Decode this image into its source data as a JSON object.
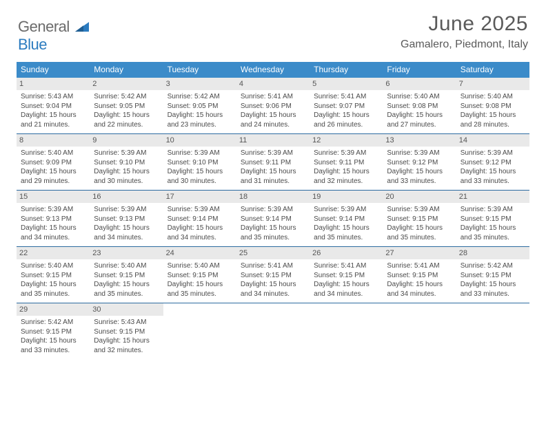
{
  "brand": {
    "part1": "General",
    "part2": "Blue"
  },
  "title": "June 2025",
  "location": "Gamalero, Piedmont, Italy",
  "colors": {
    "header_bg": "#3b8bc9",
    "week_border": "#2b6aa0",
    "daynum_bg": "#e9e9e9",
    "logo_gray": "#6b6b6b",
    "logo_blue": "#2b7bbf"
  },
  "day_names": [
    "Sunday",
    "Monday",
    "Tuesday",
    "Wednesday",
    "Thursday",
    "Friday",
    "Saturday"
  ],
  "weeks": [
    [
      {
        "n": "1",
        "sr": "5:43 AM",
        "ss": "9:04 PM",
        "dl": "15 hours and 21 minutes."
      },
      {
        "n": "2",
        "sr": "5:42 AM",
        "ss": "9:05 PM",
        "dl": "15 hours and 22 minutes."
      },
      {
        "n": "3",
        "sr": "5:42 AM",
        "ss": "9:05 PM",
        "dl": "15 hours and 23 minutes."
      },
      {
        "n": "4",
        "sr": "5:41 AM",
        "ss": "9:06 PM",
        "dl": "15 hours and 24 minutes."
      },
      {
        "n": "5",
        "sr": "5:41 AM",
        "ss": "9:07 PM",
        "dl": "15 hours and 26 minutes."
      },
      {
        "n": "6",
        "sr": "5:40 AM",
        "ss": "9:08 PM",
        "dl": "15 hours and 27 minutes."
      },
      {
        "n": "7",
        "sr": "5:40 AM",
        "ss": "9:08 PM",
        "dl": "15 hours and 28 minutes."
      }
    ],
    [
      {
        "n": "8",
        "sr": "5:40 AM",
        "ss": "9:09 PM",
        "dl": "15 hours and 29 minutes."
      },
      {
        "n": "9",
        "sr": "5:39 AM",
        "ss": "9:10 PM",
        "dl": "15 hours and 30 minutes."
      },
      {
        "n": "10",
        "sr": "5:39 AM",
        "ss": "9:10 PM",
        "dl": "15 hours and 30 minutes."
      },
      {
        "n": "11",
        "sr": "5:39 AM",
        "ss": "9:11 PM",
        "dl": "15 hours and 31 minutes."
      },
      {
        "n": "12",
        "sr": "5:39 AM",
        "ss": "9:11 PM",
        "dl": "15 hours and 32 minutes."
      },
      {
        "n": "13",
        "sr": "5:39 AM",
        "ss": "9:12 PM",
        "dl": "15 hours and 33 minutes."
      },
      {
        "n": "14",
        "sr": "5:39 AM",
        "ss": "9:12 PM",
        "dl": "15 hours and 33 minutes."
      }
    ],
    [
      {
        "n": "15",
        "sr": "5:39 AM",
        "ss": "9:13 PM",
        "dl": "15 hours and 34 minutes."
      },
      {
        "n": "16",
        "sr": "5:39 AM",
        "ss": "9:13 PM",
        "dl": "15 hours and 34 minutes."
      },
      {
        "n": "17",
        "sr": "5:39 AM",
        "ss": "9:14 PM",
        "dl": "15 hours and 34 minutes."
      },
      {
        "n": "18",
        "sr": "5:39 AM",
        "ss": "9:14 PM",
        "dl": "15 hours and 35 minutes."
      },
      {
        "n": "19",
        "sr": "5:39 AM",
        "ss": "9:14 PM",
        "dl": "15 hours and 35 minutes."
      },
      {
        "n": "20",
        "sr": "5:39 AM",
        "ss": "9:15 PM",
        "dl": "15 hours and 35 minutes."
      },
      {
        "n": "21",
        "sr": "5:39 AM",
        "ss": "9:15 PM",
        "dl": "15 hours and 35 minutes."
      }
    ],
    [
      {
        "n": "22",
        "sr": "5:40 AM",
        "ss": "9:15 PM",
        "dl": "15 hours and 35 minutes."
      },
      {
        "n": "23",
        "sr": "5:40 AM",
        "ss": "9:15 PM",
        "dl": "15 hours and 35 minutes."
      },
      {
        "n": "24",
        "sr": "5:40 AM",
        "ss": "9:15 PM",
        "dl": "15 hours and 35 minutes."
      },
      {
        "n": "25",
        "sr": "5:41 AM",
        "ss": "9:15 PM",
        "dl": "15 hours and 34 minutes."
      },
      {
        "n": "26",
        "sr": "5:41 AM",
        "ss": "9:15 PM",
        "dl": "15 hours and 34 minutes."
      },
      {
        "n": "27",
        "sr": "5:41 AM",
        "ss": "9:15 PM",
        "dl": "15 hours and 34 minutes."
      },
      {
        "n": "28",
        "sr": "5:42 AM",
        "ss": "9:15 PM",
        "dl": "15 hours and 33 minutes."
      }
    ],
    [
      {
        "n": "29",
        "sr": "5:42 AM",
        "ss": "9:15 PM",
        "dl": "15 hours and 33 minutes."
      },
      {
        "n": "30",
        "sr": "5:43 AM",
        "ss": "9:15 PM",
        "dl": "15 hours and 32 minutes."
      },
      null,
      null,
      null,
      null,
      null
    ]
  ],
  "labels": {
    "sunrise": "Sunrise:",
    "sunset": "Sunset:",
    "daylight": "Daylight:"
  }
}
